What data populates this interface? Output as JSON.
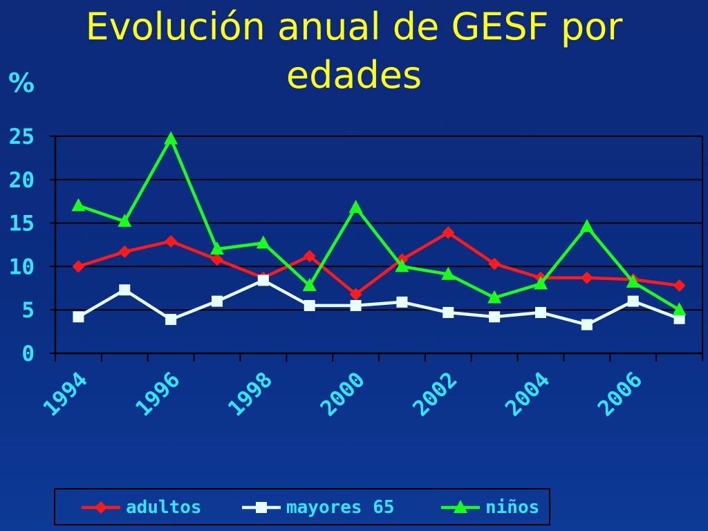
{
  "slide": {
    "title": "Evolución anual de GESF por edades",
    "y_unit_label": "%"
  },
  "chart_data": {
    "type": "line",
    "title": "Evolución anual de GESF por edades",
    "xlabel": "",
    "ylabel": "%",
    "x": [
      1994,
      1995,
      1996,
      1997,
      1998,
      1999,
      2000,
      2001,
      2002,
      2003,
      2004,
      2005,
      2006,
      2007
    ],
    "x_tick_labels": [
      "1994",
      "1996",
      "1998",
      "2000",
      "2002",
      "2004",
      "2006"
    ],
    "y_ticks": [
      0,
      5,
      10,
      15,
      20,
      25
    ],
    "ylim": [
      0,
      25
    ],
    "grid": "horizontal",
    "legend_position": "bottom",
    "series": [
      {
        "name": "adultos",
        "color": "#ff1a1a",
        "marker": "diamond",
        "values": [
          10.0,
          11.7,
          12.9,
          10.8,
          8.7,
          11.2,
          6.8,
          10.8,
          13.9,
          10.3,
          8.7,
          8.7,
          8.5,
          7.8
        ]
      },
      {
        "name": "mayores 65",
        "color": "#e8ffff",
        "marker": "square",
        "values": [
          4.2,
          7.3,
          3.9,
          6.0,
          8.4,
          5.5,
          5.5,
          5.9,
          4.7,
          4.2,
          4.7,
          3.3,
          6.0,
          4.0
        ]
      },
      {
        "name": "niños",
        "color": "#1aff1a",
        "marker": "triangle",
        "values": [
          17.0,
          15.2,
          24.7,
          12.0,
          12.7,
          7.8,
          16.8,
          10.0,
          9.1,
          6.4,
          8.0,
          14.6,
          8.2,
          5.0
        ]
      }
    ]
  }
}
